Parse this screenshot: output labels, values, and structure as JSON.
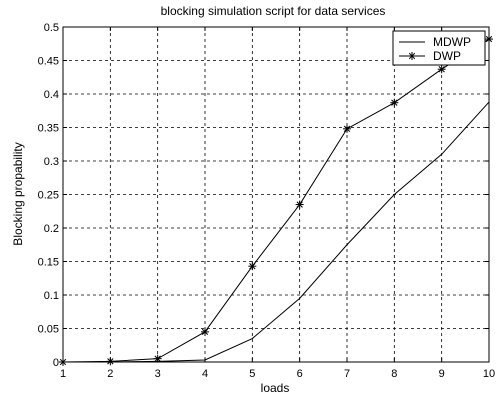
{
  "chart_data": {
    "type": "line",
    "title": "blocking simulation script for data services",
    "xlabel": "loads",
    "ylabel": "Blocking propability",
    "xlim": [
      1,
      10
    ],
    "ylim": [
      0,
      0.5
    ],
    "x_ticks": [
      "1",
      "2",
      "3",
      "4",
      "5",
      "6",
      "7",
      "8",
      "9",
      "10"
    ],
    "y_ticks": [
      "0",
      "0.05",
      "0.1",
      "0.15",
      "0.2",
      "0.25",
      "0.3",
      "0.35",
      "0.4",
      "0.45",
      "0.5"
    ],
    "grid": true,
    "legend_position": "top-right",
    "x": [
      1,
      2,
      3,
      4,
      5,
      6,
      7,
      8,
      9,
      10
    ],
    "series": [
      {
        "name": "MDWP",
        "marker": "none",
        "color": "#000000",
        "values": [
          0,
          0,
          0.001,
          0.003,
          0.035,
          0.095,
          0.175,
          0.25,
          0.31,
          0.388
        ]
      },
      {
        "name": "DWP",
        "marker": "asterisk",
        "color": "#000000",
        "values": [
          0,
          0.001,
          0.005,
          0.045,
          0.143,
          0.235,
          0.348,
          0.387,
          0.437,
          0.482
        ]
      }
    ]
  }
}
